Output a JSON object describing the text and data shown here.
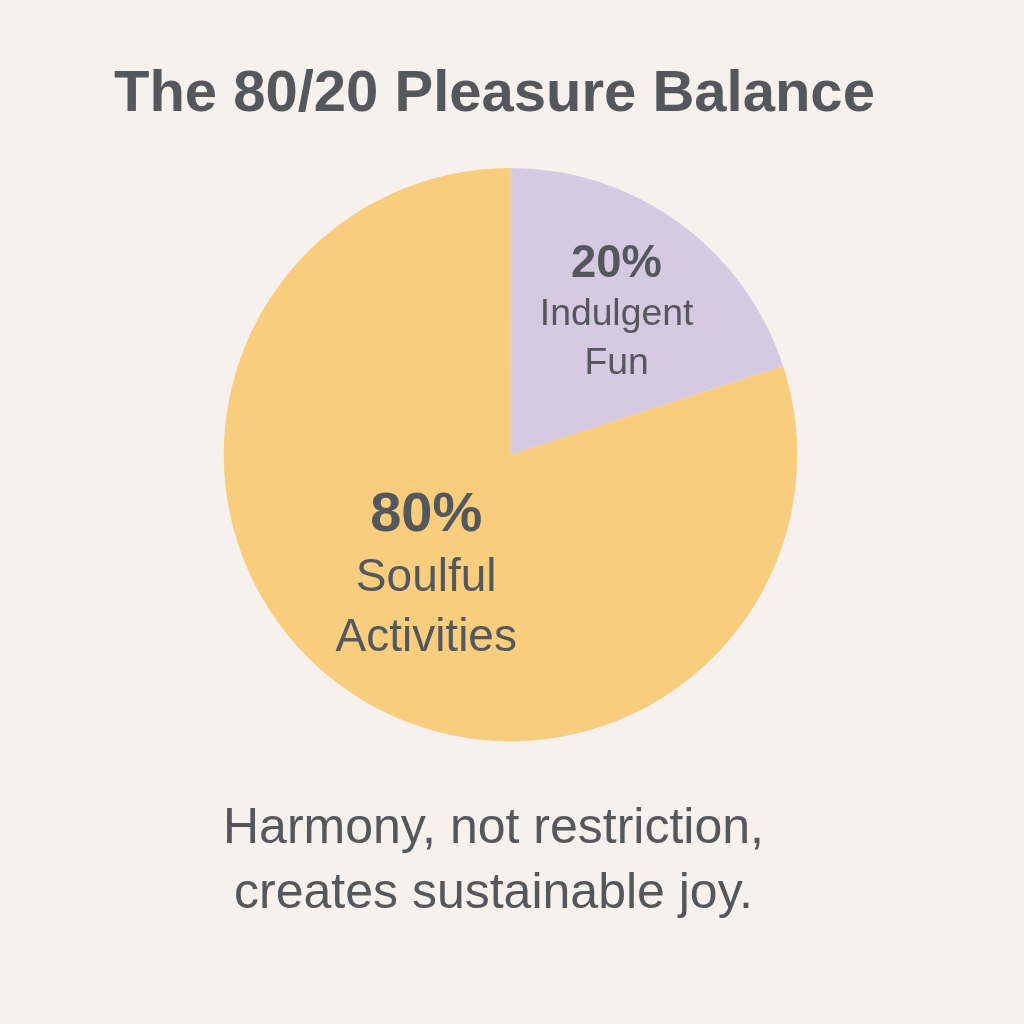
{
  "chart_data": {
    "type": "pie",
    "title": "The 80/20 Pleasure Balance",
    "categories": [
      "Indulgent Fun",
      "Soulful Activities"
    ],
    "values": [
      20,
      80
    ],
    "colors": [
      "#d6c9e2",
      "#f8cd7e"
    ],
    "value_labels": [
      "20%",
      "80%"
    ],
    "legend": false,
    "annotations": [
      "Harmony, not restriction, creates sustainable joy."
    ]
  }
}
